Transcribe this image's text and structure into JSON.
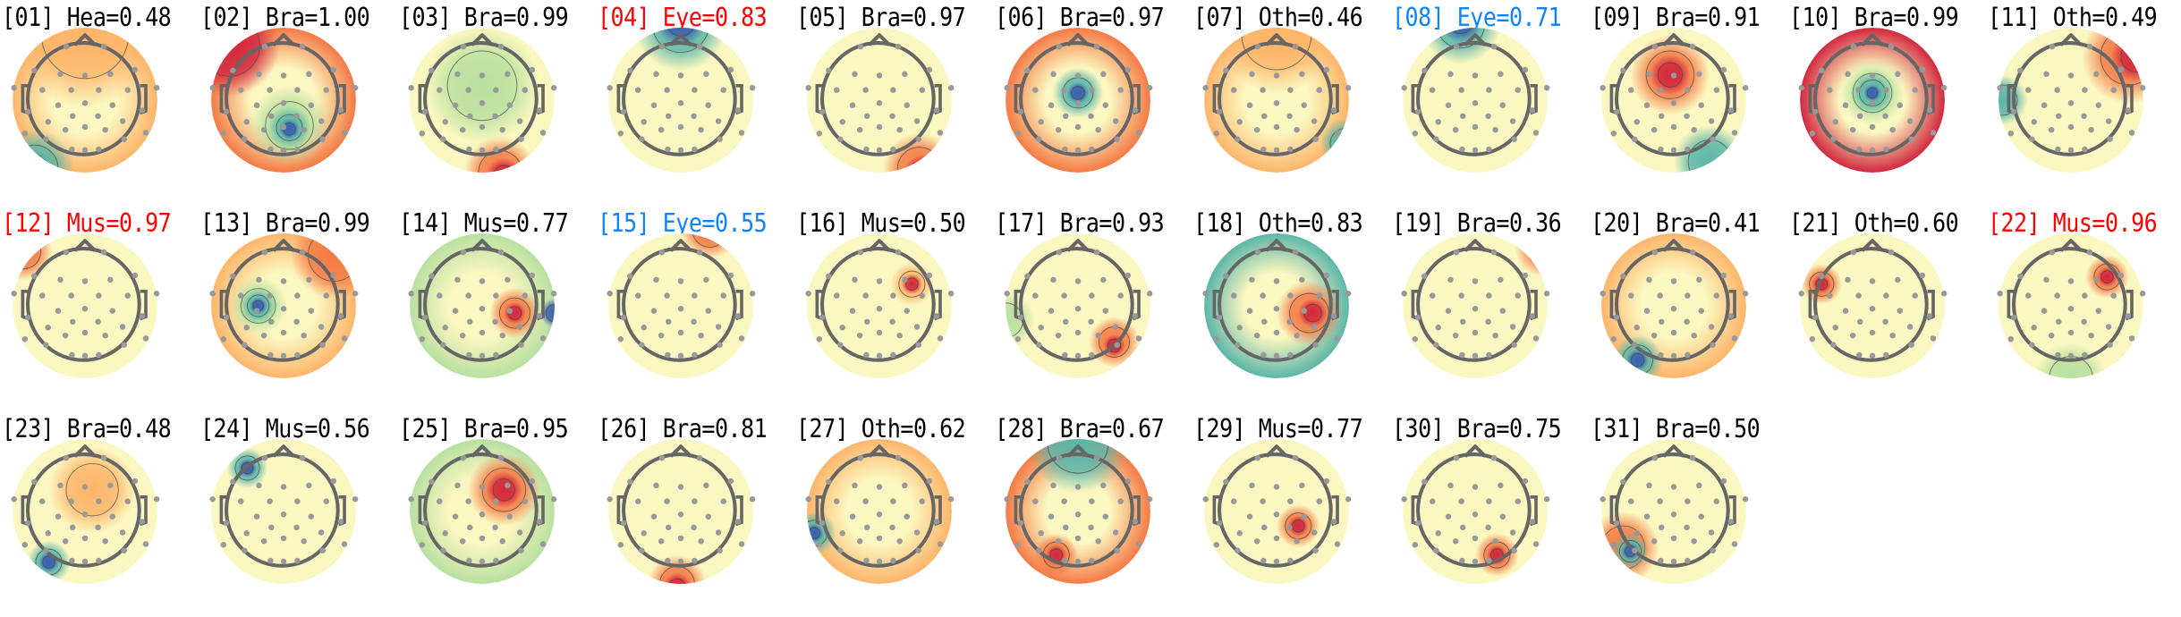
{
  "colors": {
    "default_label": "#000000",
    "flagged_red": "#ff0000",
    "flagged_blue": "#0a84ff",
    "colormap": [
      "#3b5fb0",
      "#5bb6a9",
      "#b8e0a0",
      "#fbf7c0",
      "#fdb56a",
      "#f57a45",
      "#d2283f"
    ],
    "head_outline": "#666666",
    "electrode": "#999999"
  },
  "components": [
    {
      "index": "01",
      "label": "[01] Hea=0.48",
      "flag": "none"
    },
    {
      "index": "02",
      "label": "[02] Bra=1.00",
      "flag": "none"
    },
    {
      "index": "03",
      "label": "[03] Bra=0.99",
      "flag": "none"
    },
    {
      "index": "04",
      "label": "[04] Eye=0.83",
      "flag": "red"
    },
    {
      "index": "05",
      "label": "[05] Bra=0.97",
      "flag": "none"
    },
    {
      "index": "06",
      "label": "[06] Bra=0.97",
      "flag": "none"
    },
    {
      "index": "07",
      "label": "[07] Oth=0.46",
      "flag": "none"
    },
    {
      "index": "08",
      "label": "[08] Eye=0.71",
      "flag": "blue"
    },
    {
      "index": "09",
      "label": "[09] Bra=0.91",
      "flag": "none"
    },
    {
      "index": "10",
      "label": "[10] Bra=0.99",
      "flag": "none"
    },
    {
      "index": "11",
      "label": "[11] Oth=0.49",
      "flag": "none"
    },
    {
      "index": "12",
      "label": "[12] Mus=0.97",
      "flag": "red"
    },
    {
      "index": "13",
      "label": "[13] Bra=0.99",
      "flag": "none"
    },
    {
      "index": "14",
      "label": "[14] Mus=0.77",
      "flag": "none"
    },
    {
      "index": "15",
      "label": "[15] Eye=0.55",
      "flag": "blue"
    },
    {
      "index": "16",
      "label": "[16] Mus=0.50",
      "flag": "none"
    },
    {
      "index": "17",
      "label": "[17] Bra=0.93",
      "flag": "none"
    },
    {
      "index": "18",
      "label": "[18] Oth=0.83",
      "flag": "none"
    },
    {
      "index": "19",
      "label": "[19] Bra=0.36",
      "flag": "none"
    },
    {
      "index": "20",
      "label": "[20] Bra=0.41",
      "flag": "none"
    },
    {
      "index": "21",
      "label": "[21] Oth=0.60",
      "flag": "none"
    },
    {
      "index": "22",
      "label": "[22] Mus=0.96",
      "flag": "red"
    },
    {
      "index": "23",
      "label": "[23] Bra=0.48",
      "flag": "none"
    },
    {
      "index": "24",
      "label": "[24] Mus=0.56",
      "flag": "none"
    },
    {
      "index": "25",
      "label": "[25] Bra=0.95",
      "flag": "none"
    },
    {
      "index": "26",
      "label": "[26] Bra=0.81",
      "flag": "none"
    },
    {
      "index": "27",
      "label": "[27] Oth=0.62",
      "flag": "none"
    },
    {
      "index": "28",
      "label": "[28] Bra=0.67",
      "flag": "none"
    },
    {
      "index": "29",
      "label": "[29] Mus=0.77",
      "flag": "none"
    },
    {
      "index": "30",
      "label": "[30] Bra=0.75",
      "flag": "none"
    },
    {
      "index": "31",
      "label": "[31] Bra=0.50",
      "flag": "none"
    }
  ]
}
